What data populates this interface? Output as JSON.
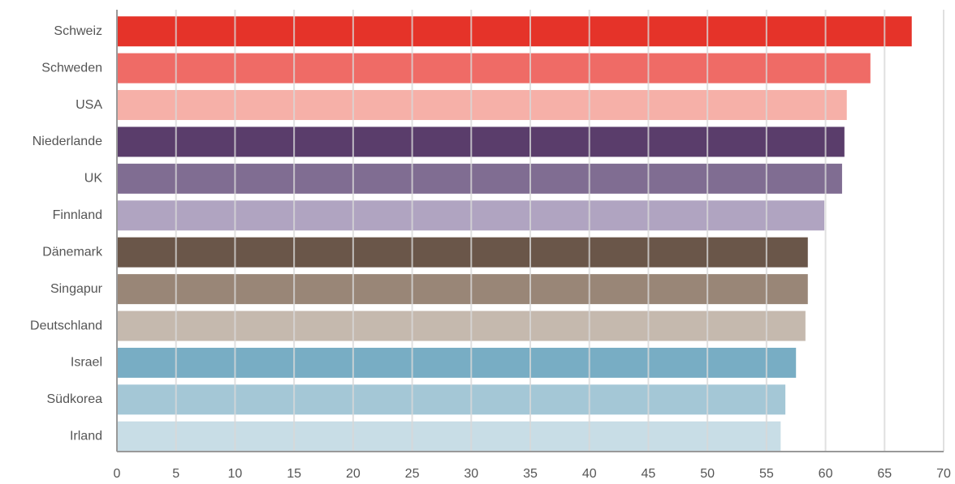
{
  "chart_data": {
    "type": "bar",
    "orientation": "horizontal",
    "categories": [
      "Schweiz",
      "Schweden",
      "USA",
      "Niederlande",
      "UK",
      "Finnland",
      "Dänemark",
      "Singapur",
      "Deutschland",
      "Israel",
      "Südkorea",
      "Irland"
    ],
    "values": [
      67.3,
      63.8,
      61.8,
      61.6,
      61.4,
      59.9,
      58.5,
      58.5,
      58.3,
      57.5,
      56.6,
      56.2
    ],
    "colors": [
      "#e53329",
      "#ef6b66",
      "#f6b0a8",
      "#5a3d6b",
      "#806d92",
      "#b0a4c1",
      "#6a5649",
      "#998677",
      "#c5b9ae",
      "#78adc4",
      "#a4c7d6",
      "#c8dde6"
    ],
    "xlim": [
      0,
      70
    ],
    "xticks": [
      0,
      5,
      10,
      15,
      20,
      25,
      30,
      35,
      40,
      45,
      50,
      55,
      60,
      65,
      70
    ],
    "grid": true
  }
}
